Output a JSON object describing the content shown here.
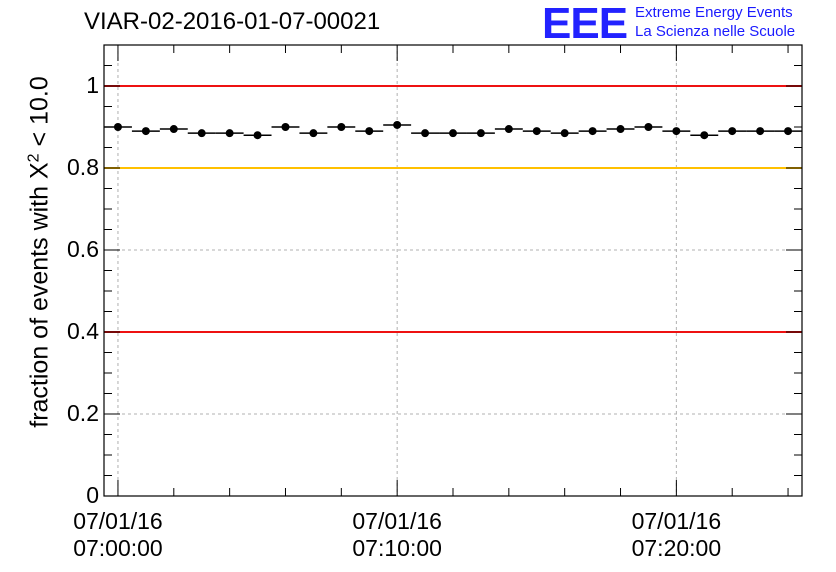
{
  "header": {
    "title": "VIAR-02-2016-01-07-00021"
  },
  "logo": {
    "letters": "EEE",
    "line1": "Extreme Energy Events",
    "line2": "La Scienza nelle Scuole"
  },
  "chart_data": {
    "type": "scatter",
    "title": "VIAR-02-2016-01-07-00021",
    "ylabel_prefix": "fraction of events with",
    "ylabel_chi": "X",
    "ylabel_exp": "2",
    "ylabel_suffix": "< 10.0",
    "xlabel": "",
    "ylim": [
      0,
      1.1
    ],
    "xlim_minutes": [
      -0.5,
      24.5
    ],
    "y_ticks": [
      {
        "value": 0,
        "label": "0"
      },
      {
        "value": 0.2,
        "label": "0.2"
      },
      {
        "value": 0.4,
        "label": "0.4"
      },
      {
        "value": 0.6,
        "label": "0.6"
      },
      {
        "value": 0.8,
        "label": "0.8"
      },
      {
        "value": 1,
        "label": "1"
      }
    ],
    "x_ticks": [
      {
        "minute": 0,
        "date": "07/01/16",
        "time": "07:00:00"
      },
      {
        "minute": 10,
        "date": "07/01/16",
        "time": "07:10:00"
      },
      {
        "minute": 20,
        "date": "07/01/16",
        "time": "07:20:00"
      }
    ],
    "x_minutes": [
      0,
      1,
      2,
      3,
      4,
      5,
      6,
      7,
      8,
      9,
      10,
      11,
      12,
      13,
      14,
      15,
      16,
      17,
      18,
      19,
      20,
      21,
      22,
      23,
      24
    ],
    "values": [
      0.9,
      0.89,
      0.895,
      0.885,
      0.885,
      0.88,
      0.9,
      0.885,
      0.9,
      0.89,
      0.905,
      0.885,
      0.885,
      0.885,
      0.895,
      0.89,
      0.885,
      0.89,
      0.895,
      0.9,
      0.89,
      0.88,
      0.89,
      0.89,
      0.89
    ],
    "reference_lines": [
      {
        "value": 1.0,
        "color": "#ee1111"
      },
      {
        "value": 0.8,
        "color": "#ffc000"
      },
      {
        "value": 0.4,
        "color": "#ee1111"
      }
    ],
    "grid": true,
    "marker_color": "#000000"
  }
}
